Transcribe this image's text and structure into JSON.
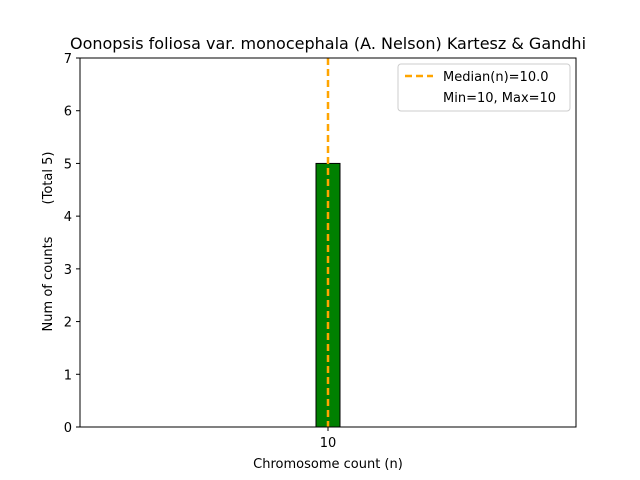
{
  "chart_data": {
    "type": "bar",
    "title": "Oonopsis foliosa var. monocephala (A. Nelson) Kartesz & Gandhi",
    "xlabel": "Chromosome count (n)",
    "ylabel": "Num of counts",
    "ylabel_total": "(Total 5)",
    "categories": [
      "10"
    ],
    "values": [
      5
    ],
    "bar_color": "#008000",
    "bar_edge_color": "#000000",
    "x_tick_labels": [
      "10"
    ],
    "y_ticks": [
      0,
      1,
      2,
      3,
      4,
      5,
      6,
      7
    ],
    "ylim": [
      0,
      7
    ],
    "grid": false,
    "median_line": {
      "value": 10,
      "label": "Median(n)=10.0",
      "color": "#FFA500",
      "style": "dashed"
    },
    "legend": {
      "placement": "top-right",
      "entries": [
        "Median(n)=10.0",
        "Min=10, Max=10"
      ]
    }
  }
}
